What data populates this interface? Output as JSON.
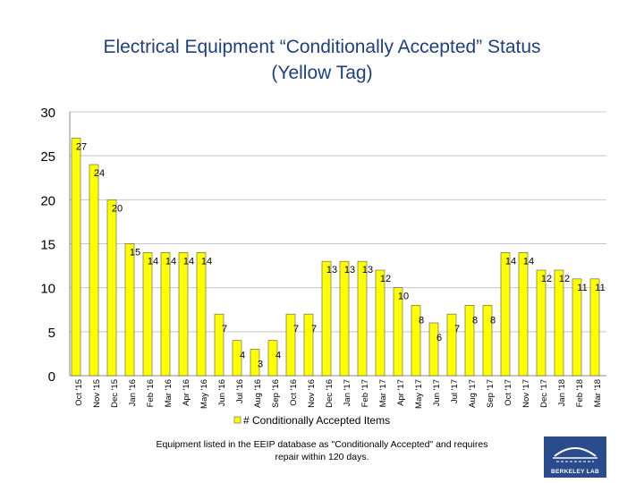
{
  "header": {
    "title_line1": "Electrical Equipment “Conditionally Accepted” Status",
    "title_line2": "(Yellow Tag)"
  },
  "footnote": {
    "line1": "Equipment listed in the EEIP database as \"Conditionally Accepted\" and requires",
    "line2": "repair within 120 days."
  },
  "logo": {
    "text": "BERKELEY LAB"
  },
  "colors": {
    "bar": "#ffff00",
    "bar_stroke": "#555555",
    "title": "#1f3f7f",
    "grid": "#c8c8c8",
    "logo": "#2b4c8c"
  },
  "chart_data": {
    "type": "bar",
    "title": "Electrical Equipment “Conditionally Accepted” Status (Yellow Tag)",
    "xlabel": "",
    "ylabel": "",
    "ylim": [
      0,
      30
    ],
    "yticks": [
      0,
      5,
      10,
      15,
      20,
      25,
      30
    ],
    "grid": true,
    "legend": {
      "position": "bottom"
    },
    "categories": [
      "Oct '15",
      "Nov '15",
      "Dec '15",
      "Jan '16",
      "Feb '16",
      "Mar '16",
      "Apr '16",
      "May '16",
      "Jun '16",
      "Jul '16",
      "Aug '16",
      "Sep '16",
      "Oct '16",
      "Nov '16",
      "Dec '16",
      "Jan '17",
      "Feb '17",
      "Mar '17",
      "Apr '17",
      "May '17",
      "Jun '17",
      "Jul '17",
      "Aug '17",
      "Sep '17",
      "Oct '17",
      "Nov '17",
      "Dec '17",
      "Jan '18",
      "Feb '18",
      "Mar '18"
    ],
    "series": [
      {
        "name": "# Conditionally Accepted Items",
        "values": [
          27,
          24,
          20,
          15,
          14,
          14,
          14,
          14,
          7,
          4,
          3,
          4,
          7,
          7,
          13,
          13,
          13,
          12,
          10,
          8,
          6,
          7,
          8,
          8,
          14,
          14,
          12,
          12,
          11,
          11
        ]
      }
    ]
  }
}
